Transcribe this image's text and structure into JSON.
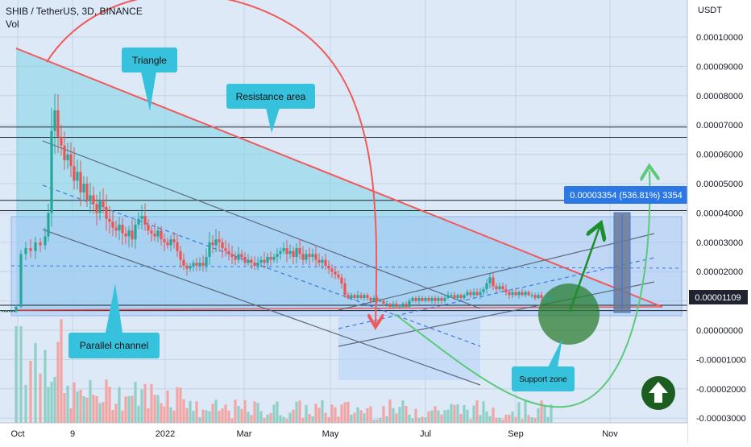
{
  "header": {
    "symbol": "SHIB / TetherUS, 3D, BINANCE",
    "volume_label": "Vol"
  },
  "colors": {
    "background": "#dde9f7",
    "grid": "#c3d3e6",
    "up_candle": "#26a69a",
    "down_candle": "#ef5350",
    "vol_up": "#8fcfc6",
    "vol_down": "#f2a6a4",
    "triangle_line": "#f05a5a",
    "triangle_fill": "#7fd3e6",
    "channel_fill": "#a7c9f5",
    "label_box": "#36c2dd",
    "support_zone": "#2e7d32",
    "projection_arrow": "#1b8f2a",
    "price_label_bg": "#1f2430",
    "target_label_bg": "#2b78e4",
    "badge": "#1b5e20"
  },
  "chart_data": {
    "type": "candlestick",
    "title": "SHIB / TetherUS, 3D, BINANCE",
    "quote_currency": "USDT",
    "x_ticks": [
      "Oct",
      "9",
      "2022",
      "Mar",
      "May",
      "Jul",
      "Sep",
      "Nov"
    ],
    "y_ticks": [
      "0.00010000",
      "0.00009000",
      "0.00008000",
      "0.00007000",
      "0.00006000",
      "0.00005000",
      "0.00004000",
      "0.00003000",
      "0.00002000",
      "0.00001000",
      "0.00000000",
      "-0.00001000",
      "-0.00002000",
      "-0.00003000"
    ],
    "y_range": [
      -3e-05,
      0.000103
    ],
    "last_price": "0.00001109",
    "target_label": "0.00003354 (536.81%) 3354",
    "horizontal_levels": [
      6.93e-05,
      6.58e-05,
      4.43e-05,
      4.08e-05,
      8.5e-06,
      6.7e-06
    ],
    "annotations": {
      "triangle": "Triangle",
      "resistance": "Resistance area",
      "channel": "Parallel channel",
      "support": "Support zone"
    },
    "price_series_approx": [
      {
        "date": "2021-10",
        "open": 6.5e-06,
        "high": 8.8e-06,
        "low": 6.2e-06,
        "close": 7.9e-06
      },
      {
        "date": "2021-10-28",
        "open": 5.5e-05,
        "high": 8.8e-05,
        "low": 4e-05,
        "close": 7.2e-05
      },
      {
        "date": "2021-11",
        "open": 6e-05,
        "high": 6.6e-05,
        "low": 4.6e-05,
        "close": 5e-05
      },
      {
        "date": "2021-12",
        "open": 4.3e-05,
        "high": 4.6e-05,
        "low": 3e-05,
        "close": 3.4e-05
      },
      {
        "date": "2022-01",
        "open": 3.7e-05,
        "high": 4.1e-05,
        "low": 2.7e-05,
        "close": 3e-05
      },
      {
        "date": "2022-02",
        "open": 2.4e-05,
        "high": 3.3e-05,
        "low": 1.8e-05,
        "close": 2.8e-05
      },
      {
        "date": "2022-03",
        "open": 2.4e-05,
        "high": 3.1e-05,
        "low": 2e-05,
        "close": 2.5e-05
      },
      {
        "date": "2022-04",
        "open": 2.7e-05,
        "high": 3e-05,
        "low": 1.9e-05,
        "close": 2e-05
      },
      {
        "date": "2022-05",
        "open": 2e-05,
        "high": 2.2e-05,
        "low": 9e-06,
        "close": 1.1e-05
      },
      {
        "date": "2022-06",
        "open": 1.1e-05,
        "high": 1.2e-05,
        "low": 7e-06,
        "close": 8.5e-06
      },
      {
        "date": "2022-07",
        "open": 8.5e-06,
        "high": 1.2e-05,
        "low": 8.5e-06,
        "close": 1.1e-05
      },
      {
        "date": "2022-08",
        "open": 1.1e-05,
        "high": 1.8e-05,
        "low": 1.1e-05,
        "close": 1.3e-05
      },
      {
        "date": "2022-09",
        "open": 1.3e-05,
        "high": 1.4e-05,
        "low": 1.1e-05,
        "close": 1.1e-05
      }
    ],
    "grid": true
  }
}
